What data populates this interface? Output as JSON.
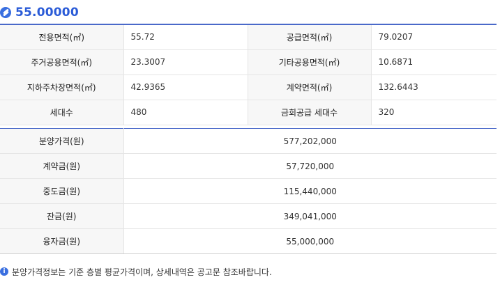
{
  "title": "55.00000",
  "area": {
    "rows": [
      {
        "label1": "전용면적(㎡)",
        "value1": "55.72",
        "label2": "공급면적(㎡)",
        "value2": "79.0207"
      },
      {
        "label1": "주거공용면적(㎡)",
        "value1": "23.3007",
        "label2": "기타공용면적(㎡)",
        "value2": "10.6871"
      },
      {
        "label1": "지하주차장면적(㎡)",
        "value1": "42.9365",
        "label2": "계약면적(㎡)",
        "value2": "132.6443"
      },
      {
        "label1": "세대수",
        "value1": "480",
        "label2": "금회공급 세대수",
        "value2": "320"
      }
    ]
  },
  "price": {
    "rows": [
      {
        "label": "분양가격(원)",
        "value": "577,202,000"
      },
      {
        "label": "계약금(원)",
        "value": "57,720,000"
      },
      {
        "label": "중도금(원)",
        "value": "115,440,000"
      },
      {
        "label": "잔금(원)",
        "value": "349,041,000"
      },
      {
        "label": "융자금(원)",
        "value": "55,000,000"
      }
    ]
  },
  "note": {
    "icon": "i",
    "text": "분양가격정보는 기준 층별 평균가격이며, 상세내역은 공고문 참조바랍니다."
  },
  "colors": {
    "accent": "#2a5bd7",
    "border": "#4a69c9",
    "label_bg": "#f7f7f7"
  }
}
